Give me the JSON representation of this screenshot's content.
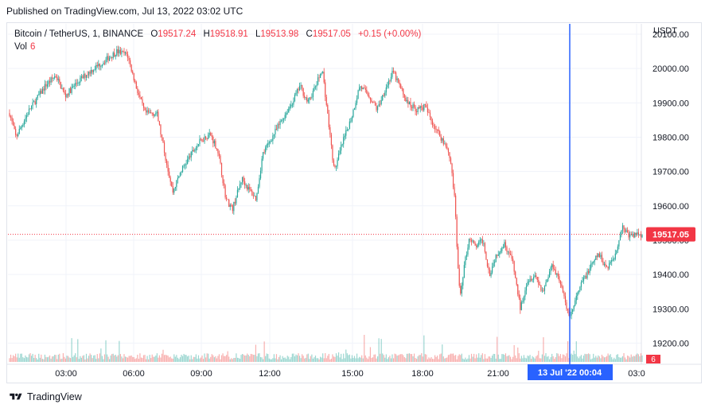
{
  "header": {
    "published": "Published on TradingView.com, Jul 13, 2022 03:02 UTC"
  },
  "legend": {
    "symbol": "Bitcoin / TetherUS, 1, BINANCE",
    "o_label": "O",
    "o_value": "19517.24",
    "h_label": "H",
    "h_value": "19518.91",
    "l_label": "L",
    "l_value": "19513.98",
    "c_label": "C",
    "c_value": "19517.05",
    "change": "+0.15 (+0.00%)",
    "vol_label": "Vol",
    "vol_value": "6"
  },
  "axis": {
    "currency": "USDT"
  },
  "footer": {
    "brand": "TradingView"
  },
  "colors": {
    "up": "#26a69a",
    "down": "#ef5350",
    "crosshair": "#2962ff",
    "price_tag": "#f23645"
  },
  "chart_data": {
    "type": "candlestick",
    "y_axis": {
      "ticks": [
        19200,
        19300,
        19400,
        19500,
        19600,
        19700,
        19800,
        19900,
        20000,
        20100
      ],
      "tick_labels": [
        "19200.00",
        "19300.00",
        "19400.00",
        "19500.00",
        "19600.00",
        "19700.00",
        "19800.00",
        "19900.00",
        "20000.00",
        "20100.00"
      ],
      "range": [
        19150,
        20120
      ]
    },
    "x_axis": {
      "tick_labels": [
        "03:00",
        "06:00",
        "09:00",
        "12:00",
        "15:00",
        "18:00",
        "21:00",
        "03:0"
      ]
    },
    "last_price": 19517.05,
    "last_price_label": "19517.05",
    "crosshair_label": "13 Jul '22   00:04",
    "volume_last_label": "6",
    "price_path": [
      [
        0,
        19870
      ],
      [
        8,
        19800
      ],
      [
        25,
        19880
      ],
      [
        45,
        19950
      ],
      [
        58,
        19980
      ],
      [
        70,
        19920
      ],
      [
        85,
        19960
      ],
      [
        100,
        19990
      ],
      [
        118,
        20020
      ],
      [
        135,
        20050
      ],
      [
        148,
        20040
      ],
      [
        160,
        19940
      ],
      [
        170,
        19870
      ],
      [
        185,
        19870
      ],
      [
        197,
        19730
      ],
      [
        205,
        19640
      ],
      [
        215,
        19700
      ],
      [
        228,
        19750
      ],
      [
        240,
        19790
      ],
      [
        252,
        19810
      ],
      [
        262,
        19760
      ],
      [
        272,
        19620
      ],
      [
        280,
        19590
      ],
      [
        292,
        19680
      ],
      [
        300,
        19650
      ],
      [
        310,
        19620
      ],
      [
        318,
        19750
      ],
      [
        330,
        19800
      ],
      [
        342,
        19850
      ],
      [
        355,
        19900
      ],
      [
        365,
        19950
      ],
      [
        375,
        19900
      ],
      [
        385,
        19950
      ],
      [
        393,
        20000
      ],
      [
        403,
        19800
      ],
      [
        408,
        19700
      ],
      [
        418,
        19780
      ],
      [
        430,
        19860
      ],
      [
        440,
        19950
      ],
      [
        452,
        19920
      ],
      [
        462,
        19880
      ],
      [
        472,
        19940
      ],
      [
        482,
        19990
      ],
      [
        490,
        19950
      ],
      [
        500,
        19900
      ],
      [
        512,
        19880
      ],
      [
        522,
        19890
      ],
      [
        532,
        19840
      ],
      [
        542,
        19800
      ],
      [
        550,
        19770
      ],
      [
        555,
        19720
      ],
      [
        560,
        19600
      ],
      [
        563,
        19440
      ],
      [
        566,
        19330
      ],
      [
        571,
        19420
      ],
      [
        578,
        19510
      ],
      [
        585,
        19480
      ],
      [
        595,
        19500
      ],
      [
        603,
        19400
      ],
      [
        612,
        19460
      ],
      [
        622,
        19490
      ],
      [
        632,
        19440
      ],
      [
        642,
        19300
      ],
      [
        650,
        19380
      ],
      [
        660,
        19400
      ],
      [
        670,
        19350
      ],
      [
        682,
        19430
      ],
      [
        692,
        19380
      ],
      [
        700,
        19300
      ],
      [
        705,
        19280
      ],
      [
        712,
        19330
      ],
      [
        720,
        19380
      ],
      [
        730,
        19420
      ],
      [
        740,
        19460
      ],
      [
        750,
        19420
      ],
      [
        760,
        19450
      ],
      [
        770,
        19540
      ],
      [
        780,
        19510
      ],
      [
        790,
        19520
      ],
      [
        795,
        19517
      ]
    ]
  }
}
